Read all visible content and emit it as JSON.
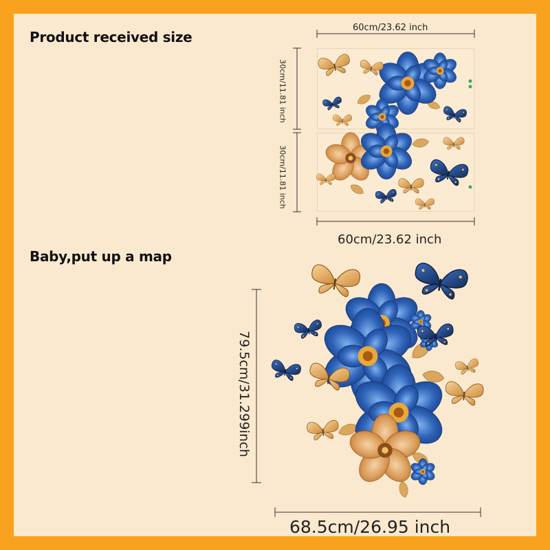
{
  "colors": {
    "frame": "#f9a21e",
    "background": "#fbe9cf",
    "flower_blue": "#2d5fb3",
    "butterfly_gold": "#e2a456",
    "butterfly_navy": "#1d3f7a"
  },
  "sections": {
    "received": {
      "title": "Product received size",
      "top_width": "60cm/23.62 inch",
      "bottom_width": "60cm/23.62 inch",
      "sheet1_height": "30cm/11.81 inch",
      "sheet2_height": "30cm/11.81 inch"
    },
    "assembled": {
      "title": "Baby,put up a map",
      "height": "79.5cm/31.299inch",
      "width": "68.5cm/26.95 inch"
    }
  },
  "icons": [
    "blue-flower-icon",
    "gold-butterfly-icon",
    "navy-butterfly-icon",
    "leaf-icon"
  ]
}
